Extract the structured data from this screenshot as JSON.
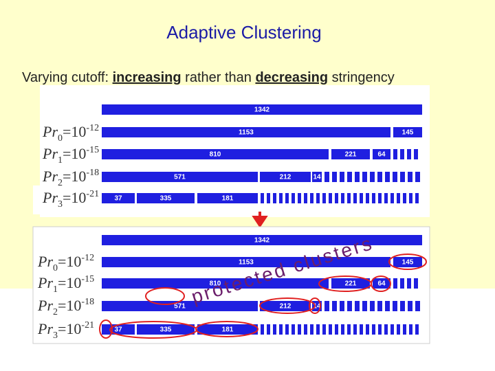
{
  "title": "Adaptive Clustering",
  "subtitle": {
    "before": "Varying cutoff: ",
    "emph1": "increasing",
    "middle": " rather than ",
    "emph2": "decreasing",
    "after": " stringency"
  },
  "levels": [
    {
      "symbol": "Pr",
      "sub": "0",
      "base": "=10",
      "exp": "-12"
    },
    {
      "symbol": "Pr",
      "sub": "1",
      "base": "=10",
      "exp": "-15"
    },
    {
      "symbol": "Pr",
      "sub": "2",
      "base": "=10",
      "exp": "-18"
    },
    {
      "symbol": "Pr",
      "sub": "3",
      "base": "=10",
      "exp": "-21"
    }
  ],
  "rows": [
    [
      1342
    ],
    [
      1153,
      145
    ],
    [
      810,
      221,
      64
    ],
    [
      571,
      212,
      14
    ],
    [
      37,
      335,
      181
    ]
  ],
  "annotation": "protected clusters"
}
